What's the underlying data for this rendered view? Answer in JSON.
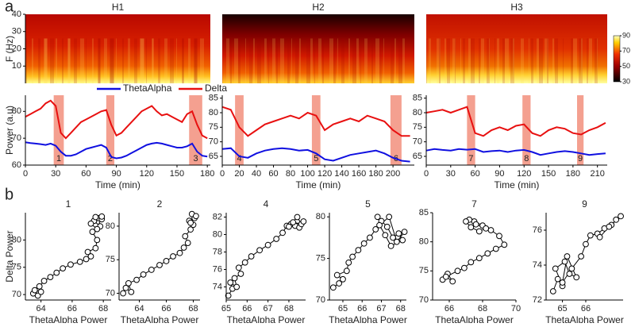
{
  "panel_labels": [
    "a",
    "b"
  ],
  "chart_data": [
    {
      "type": "spectrogram",
      "title": "H1",
      "ylabel": "F (Hz)",
      "ylim": [
        0,
        40
      ],
      "yticks": [
        10,
        20,
        30,
        40
      ]
    },
    {
      "type": "spectrogram",
      "title": "H2"
    },
    {
      "type": "spectrogram",
      "title": "H3",
      "colorbar": {
        "lim": [
          30,
          90
        ],
        "ticks": [
          30,
          50,
          70,
          90
        ]
      }
    },
    {
      "type": "line",
      "xlabel": "Time (min)",
      "ylabel": "Power (a.u)",
      "legend": "top",
      "x": [
        0,
        5,
        10,
        15,
        20,
        25,
        30,
        35,
        40,
        45,
        50,
        55,
        60,
        65,
        70,
        75,
        80,
        85,
        90,
        95,
        100,
        105,
        110,
        115,
        120,
        125,
        130,
        135,
        140,
        145,
        150,
        155,
        160,
        165,
        170,
        175,
        180
      ],
      "xlim": [
        0,
        183
      ],
      "xticks": [
        0,
        30,
        60,
        90,
        120,
        150,
        180
      ],
      "ylim": [
        60,
        86
      ],
      "yticks": [
        60,
        70,
        80
      ],
      "series": [
        {
          "name": "ThetaAlpha",
          "color": "#1010e0",
          "values": [
            68.5,
            68.2,
            68,
            67.8,
            67.5,
            68,
            67.2,
            65,
            63.5,
            63.5,
            64,
            65,
            66,
            66.5,
            67,
            67.5,
            66.5,
            63,
            62.5,
            62.8,
            63.5,
            64.5,
            65.5,
            66.5,
            67.5,
            68,
            68.3,
            68,
            67.5,
            67,
            66.5,
            66.5,
            67,
            68,
            65,
            63.5,
            63.2
          ]
        },
        {
          "name": "Delta",
          "color": "#e81010",
          "values": [
            78,
            79,
            80,
            81,
            83,
            84,
            82,
            72,
            70,
            72,
            74,
            76,
            77,
            78,
            79,
            80,
            80.5,
            75,
            71,
            72,
            74,
            76,
            78,
            80,
            81,
            82,
            80,
            78.5,
            79,
            78,
            77,
            76,
            79,
            80,
            75,
            71,
            70
          ]
        }
      ],
      "region_color": "#f4a090",
      "regions": [
        {
          "start": 28,
          "end": 38,
          "label": "1"
        },
        {
          "start": 80,
          "end": 88,
          "label": "2"
        },
        {
          "start": 162,
          "end": 175,
          "label": "3"
        }
      ]
    },
    {
      "type": "line",
      "xlabel": "Time (min)",
      "x": [
        0,
        10,
        20,
        30,
        40,
        50,
        60,
        70,
        80,
        90,
        100,
        110,
        120,
        130,
        140,
        150,
        160,
        170,
        180,
        190,
        200,
        210,
        220
      ],
      "xlim": [
        0,
        225
      ],
      "xticks": [
        0,
        20,
        40,
        60,
        80,
        100,
        120,
        140,
        160,
        180,
        200
      ],
      "ylim": [
        62,
        86
      ],
      "yticks": [
        65,
        70,
        75,
        80,
        85
      ],
      "series": [
        {
          "color": "#1010e0",
          "values": [
            67.5,
            67.8,
            65,
            64.5,
            66,
            67,
            67.5,
            67.8,
            67.5,
            67,
            67.2,
            66,
            64,
            63.5,
            64.5,
            65.5,
            66,
            66.5,
            67,
            66,
            64.5,
            63.5,
            63.2
          ]
        },
        {
          "color": "#e81010",
          "values": [
            82,
            81,
            75,
            72,
            74,
            76,
            77,
            78,
            79,
            78,
            80,
            79,
            74,
            76,
            77,
            78,
            77,
            79,
            78,
            77,
            74,
            72,
            72
          ]
        }
      ],
      "region_color": "#f4a090",
      "regions": [
        {
          "start": 15,
          "end": 25,
          "label": "4"
        },
        {
          "start": 105,
          "end": 115,
          "label": "5"
        },
        {
          "start": 197,
          "end": 210,
          "label": "6"
        }
      ]
    },
    {
      "type": "line",
      "xlabel": "Time (min)",
      "x": [
        0,
        10,
        20,
        30,
        40,
        50,
        60,
        70,
        80,
        90,
        100,
        110,
        120,
        130,
        140,
        150,
        160,
        170,
        180,
        190,
        200,
        210,
        220
      ],
      "xlim": [
        0,
        222
      ],
      "xticks": [
        0,
        30,
        60,
        90,
        120,
        150,
        180,
        210
      ],
      "ylim": [
        62,
        86
      ],
      "yticks": [
        65,
        70,
        75,
        80,
        85
      ],
      "series": [
        {
          "color": "#1010e0",
          "values": [
            67,
            67.5,
            67.2,
            67,
            67.5,
            67.3,
            67.5,
            66.5,
            66.8,
            67,
            66.5,
            67,
            67.2,
            66.5,
            65.5,
            66,
            66.5,
            66.8,
            66.5,
            66,
            65.5,
            65.8,
            66
          ]
        },
        {
          "color": "#e81010",
          "values": [
            80,
            80.5,
            81,
            80,
            81,
            82,
            73,
            72,
            74,
            75,
            74,
            75.5,
            76,
            73,
            72,
            74,
            75,
            74.5,
            73,
            72.5,
            74,
            75,
            76.5
          ]
        }
      ],
      "region_color": "#f4a090",
      "regions": [
        {
          "start": 50,
          "end": 60,
          "label": "7"
        },
        {
          "start": 118,
          "end": 128,
          "label": "8"
        },
        {
          "start": 185,
          "end": 193,
          "label": "9"
        }
      ]
    },
    {
      "type": "scatter",
      "title": "1",
      "xlabel": "ThetaAlpha Power",
      "ylabel": "Delta Power",
      "x": [
        63.5,
        63.8,
        64.0,
        63.6,
        63.9,
        64.2,
        64.6,
        65.0,
        65.4,
        65.9,
        66.5,
        66.9,
        67.2,
        67.0,
        67.5,
        67.6,
        67.3,
        67.8,
        67.4,
        67.7,
        67.9,
        67.5,
        67.2,
        67.6,
        67.9
      ],
      "values": [
        70.2,
        69.8,
        70.5,
        70.8,
        71.5,
        72.5,
        73.2,
        74.0,
        74.8,
        75.5,
        76.0,
        76.5,
        77.0,
        77.8,
        78.5,
        80.0,
        81.5,
        82.5,
        83.5,
        84.0,
        83.8,
        84.2,
        83.0,
        82.0,
        84.3
      ],
      "xlim": [
        63,
        68.5
      ],
      "xticks": [
        64,
        66,
        68
      ],
      "ylim": [
        69,
        85
      ],
      "yticks": [
        70,
        75,
        80
      ]
    },
    {
      "type": "scatter",
      "title": "2",
      "xlabel": "ThetaAlpha Power",
      "x": [
        62.8,
        63.0,
        63.4,
        63.2,
        63.8,
        64.3,
        64.9,
        65.5,
        66.0,
        66.5,
        67.0,
        67.3,
        67.6,
        67.4,
        67.8,
        68.0,
        67.7,
        68.1,
        67.9,
        68.2,
        67.8
      ],
      "values": [
        70.0,
        70.8,
        70.2,
        71.5,
        72.0,
        72.8,
        73.5,
        74.2,
        74.8,
        75.5,
        76.0,
        76.8,
        77.5,
        78.5,
        79.5,
        80.2,
        80.8,
        81.2,
        81.8,
        81.5,
        80.5
      ],
      "xlim": [
        62.5,
        68.5
      ],
      "xticks": [
        64,
        66,
        68
      ],
      "ylim": [
        69,
        82
      ],
      "yticks": [
        70,
        75,
        80
      ]
    },
    {
      "type": "scatter",
      "title": "4",
      "xlabel": "ThetaAlpha Power",
      "x": [
        65.1,
        65.3,
        65.2,
        65.5,
        65.4,
        65.7,
        65.6,
        65.9,
        66.2,
        66.6,
        67.0,
        67.4,
        67.7,
        67.9,
        68.1,
        68.3,
        68.5,
        68.2,
        68.6,
        68.4,
        68.0,
        68.7
      ],
      "values": [
        73.0,
        73.8,
        74.5,
        74.0,
        75.0,
        75.5,
        76.2,
        76.8,
        77.5,
        78.2,
        78.8,
        79.5,
        80.2,
        81.0,
        81.2,
        81.0,
        80.8,
        81.4,
        81.2,
        82.0,
        80.9,
        81.5
      ],
      "xlim": [
        65,
        68.8
      ],
      "xticks": [
        65,
        66,
        67,
        68
      ],
      "ylim": [
        72.5,
        82.5
      ],
      "yticks": [
        74,
        76,
        78,
        80,
        82
      ]
    },
    {
      "type": "scatter",
      "title": "5",
      "xlabel": "ThetaAlpha Power",
      "x": [
        64.5,
        64.8,
        65.0,
        64.7,
        65.2,
        65.3,
        65.5,
        65.8,
        66.1,
        66.4,
        66.7,
        67.0,
        66.8,
        67.3,
        67.6,
        67.9,
        68.1,
        67.5,
        67.2,
        66.9,
        67.4,
        67.8,
        68.2
      ],
      "values": [
        71.5,
        72.0,
        72.5,
        73.0,
        73.5,
        74.5,
        75.2,
        76.0,
        76.8,
        77.5,
        78.5,
        79.5,
        80.0,
        78.8,
        77.5,
        78.0,
        77.2,
        76.5,
        77.8,
        79.0,
        80.0,
        77.0,
        78.2
      ],
      "xlim": [
        64.3,
        68.3
      ],
      "xticks": [
        65,
        66,
        67,
        68
      ],
      "ylim": [
        70,
        80.5
      ],
      "yticks": [
        70,
        75,
        80
      ]
    },
    {
      "type": "scatter",
      "title": "7",
      "xlabel": "ThetaAlpha Power",
      "x": [
        65.6,
        65.9,
        66.2,
        65.8,
        66.5,
        66.9,
        67.3,
        67.8,
        68.3,
        68.8,
        69.3,
        69.0,
        68.5,
        68.0,
        67.5,
        67.2,
        67.0,
        67.3,
        67.8,
        68.2,
        67.6
      ],
      "values": [
        73.5,
        74.5,
        73.2,
        74.0,
        75.0,
        75.5,
        76.5,
        77.2,
        78.0,
        78.8,
        79.5,
        81.0,
        82.0,
        82.8,
        83.5,
        83.8,
        83.5,
        82.5,
        81.8,
        82.3,
        83.0
      ],
      "xlim": [
        65,
        70
      ],
      "xticks": [
        66,
        68,
        70
      ],
      "ylim": [
        70,
        85
      ],
      "yticks": [
        70,
        75,
        80,
        85
      ]
    },
    {
      "type": "scatter",
      "title": "9",
      "xlabel": "ThetaAlpha Power",
      "x": [
        64.6,
        64.8,
        65.0,
        64.7,
        65.1,
        65.3,
        65.6,
        65.2,
        65.0,
        65.4,
        65.8,
        66.0,
        66.2,
        66.5,
        66.8,
        67.1,
        67.3,
        67.5,
        67.0,
        66.6
      ],
      "values": [
        72.5,
        73.2,
        72.8,
        73.8,
        74.2,
        73.5,
        73.3,
        74.5,
        73.0,
        73.8,
        74.5,
        75.2,
        75.7,
        75.8,
        76.1,
        76.3,
        76.6,
        76.8,
        76.2,
        75.6
      ],
      "xlim": [
        64.3,
        67.6
      ],
      "xticks": [
        65,
        66
      ],
      "ylim": [
        72,
        77
      ],
      "yticks": [
        72,
        74,
        76
      ]
    }
  ]
}
